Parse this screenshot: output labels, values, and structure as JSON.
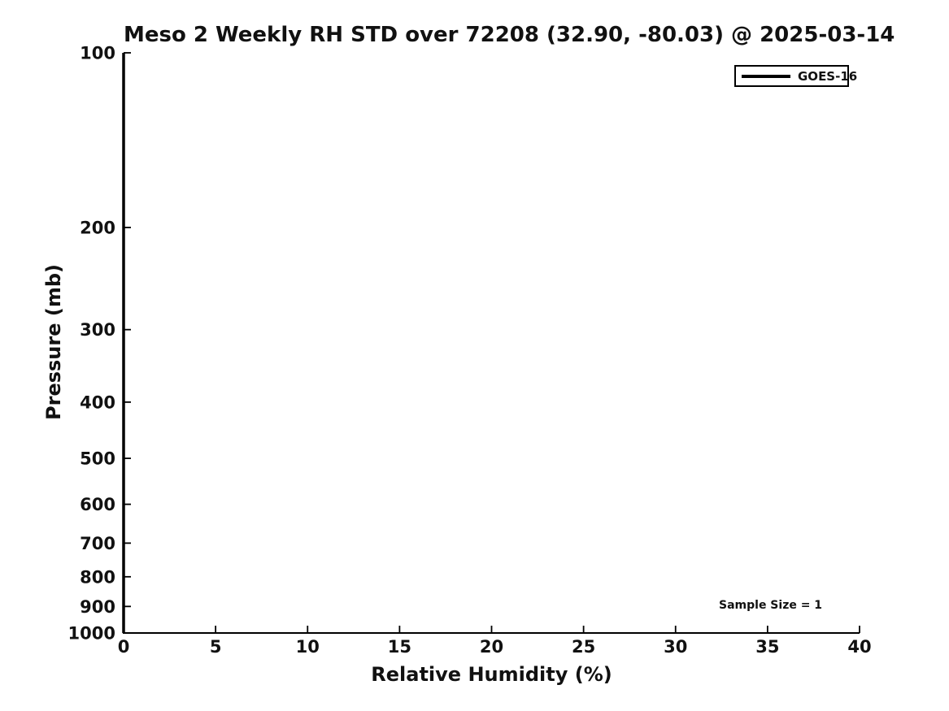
{
  "figure": {
    "title": "Meso 2 Weekly RH STD over 72208 (32.90, -80.03) @ 2025-03-14",
    "xlabel": "Relative Humidity (%)",
    "ylabel": "Pressure (mb)",
    "annotation": "Sample Size = 1",
    "legend": {
      "position": "upper right",
      "entries": [
        {
          "label": "GOES-16",
          "color": "#000000"
        }
      ]
    },
    "colors": {
      "background": "#ffffff",
      "text": "#111111",
      "axis": "#000000"
    }
  },
  "chart_data": {
    "type": "line",
    "title": "Meso 2 Weekly RH STD over 72208 (32.90, -80.03) @ 2025-03-14",
    "xlabel": "Relative Humidity (%)",
    "ylabel": "Pressure (mb)",
    "xlim": [
      0,
      40
    ],
    "xticks": [
      0,
      5,
      10,
      15,
      20,
      25,
      30,
      35,
      40
    ],
    "yscale": "log",
    "y_inverted": true,
    "ylim": [
      1000,
      100
    ],
    "yticks": [
      100,
      200,
      300,
      400,
      500,
      600,
      700,
      800,
      900,
      1000
    ],
    "grid": false,
    "legend_position": "upper right",
    "series": [
      {
        "name": "GOES-16",
        "color": "#000000",
        "linewidth": 3.5,
        "x": [
          0,
          0,
          0,
          0,
          0,
          0,
          0,
          0,
          0,
          0
        ],
        "y": [
          100,
          200,
          300,
          400,
          500,
          600,
          700,
          800,
          900,
          1000
        ]
      }
    ],
    "annotations": [
      {
        "text": "Sample Size = 1",
        "x": 35,
        "y": 900
      }
    ]
  }
}
